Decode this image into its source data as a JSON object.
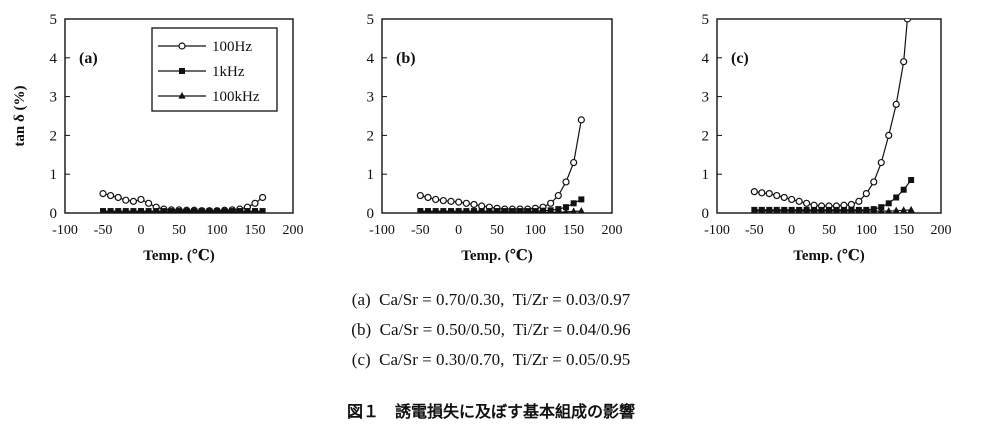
{
  "chart_data": [
    {
      "type": "line",
      "panel_label": "(a)",
      "xlabel": "Temp. (℃)",
      "ylabel": "tan δ (%)",
      "xlim": [
        -100,
        200
      ],
      "ylim": [
        0,
        5
      ],
      "xticks": [
        -100,
        -50,
        0,
        50,
        100,
        150,
        200
      ],
      "yticks": [
        0,
        1,
        2,
        3,
        4,
        5
      ],
      "legend": "top-left",
      "series": [
        {
          "name": "100Hz",
          "marker": "circle",
          "x": [
            -50,
            -40,
            -30,
            -20,
            -10,
            0,
            10,
            20,
            30,
            40,
            50,
            60,
            70,
            80,
            90,
            100,
            110,
            120,
            130,
            140,
            150,
            160
          ],
          "y": [
            0.5,
            0.45,
            0.4,
            0.33,
            0.3,
            0.35,
            0.25,
            0.15,
            0.1,
            0.08,
            0.08,
            0.07,
            0.07,
            0.06,
            0.06,
            0.06,
            0.07,
            0.08,
            0.1,
            0.15,
            0.25,
            0.4
          ]
        },
        {
          "name": "1kHz",
          "marker": "square",
          "x": [
            -50,
            -40,
            -30,
            -20,
            -10,
            0,
            10,
            20,
            30,
            40,
            50,
            60,
            70,
            80,
            90,
            100,
            110,
            120,
            130,
            140,
            150,
            160
          ],
          "y": [
            0.05,
            0.05,
            0.05,
            0.05,
            0.05,
            0.05,
            0.05,
            0.05,
            0.05,
            0.05,
            0.05,
            0.05,
            0.05,
            0.05,
            0.05,
            0.05,
            0.05,
            0.05,
            0.05,
            0.05,
            0.05,
            0.05
          ]
        },
        {
          "name": "100kHz",
          "marker": "triangle",
          "x": [
            -50,
            -40,
            -30,
            -20,
            -10,
            0,
            10,
            20,
            30,
            40,
            50,
            60,
            70,
            80,
            90,
            100,
            110,
            120,
            130,
            140,
            150,
            160
          ],
          "y": [
            0.02,
            0.02,
            0.02,
            0.02,
            0.02,
            0.02,
            0.02,
            0.02,
            0.02,
            0.02,
            0.02,
            0.02,
            0.02,
            0.02,
            0.02,
            0.02,
            0.02,
            0.02,
            0.02,
            0.02,
            0.02,
            0.02
          ]
        }
      ]
    },
    {
      "type": "line",
      "panel_label": "(b)",
      "xlabel": "Temp. (℃)",
      "ylabel": "",
      "xlim": [
        -100,
        200
      ],
      "ylim": [
        0,
        5
      ],
      "xticks": [
        -100,
        -50,
        0,
        50,
        100,
        150,
        200
      ],
      "yticks": [
        0,
        1,
        2,
        3,
        4,
        5
      ],
      "series": [
        {
          "name": "100Hz",
          "marker": "circle",
          "x": [
            -50,
            -40,
            -30,
            -20,
            -10,
            0,
            10,
            20,
            30,
            40,
            50,
            60,
            70,
            80,
            90,
            100,
            110,
            120,
            130,
            140,
            150,
            160
          ],
          "y": [
            0.45,
            0.4,
            0.35,
            0.32,
            0.3,
            0.28,
            0.25,
            0.22,
            0.18,
            0.15,
            0.12,
            0.1,
            0.1,
            0.1,
            0.1,
            0.12,
            0.15,
            0.25,
            0.45,
            0.8,
            1.3,
            2.4
          ]
        },
        {
          "name": "1kHz",
          "marker": "square",
          "x": [
            -50,
            -40,
            -30,
            -20,
            -10,
            0,
            10,
            20,
            30,
            40,
            50,
            60,
            70,
            80,
            90,
            100,
            110,
            120,
            130,
            140,
            150,
            160
          ],
          "y": [
            0.05,
            0.05,
            0.05,
            0.05,
            0.05,
            0.05,
            0.05,
            0.05,
            0.05,
            0.05,
            0.05,
            0.05,
            0.05,
            0.05,
            0.05,
            0.05,
            0.06,
            0.07,
            0.1,
            0.15,
            0.25,
            0.35
          ]
        },
        {
          "name": "100kHz",
          "marker": "triangle",
          "x": [
            -50,
            -40,
            -30,
            -20,
            -10,
            0,
            10,
            20,
            30,
            40,
            50,
            60,
            70,
            80,
            90,
            100,
            110,
            120,
            130,
            140,
            150,
            160
          ],
          "y": [
            0.02,
            0.02,
            0.02,
            0.02,
            0.02,
            0.02,
            0.02,
            0.02,
            0.02,
            0.02,
            0.02,
            0.02,
            0.02,
            0.02,
            0.02,
            0.02,
            0.02,
            0.02,
            0.02,
            0.03,
            0.04,
            0.05
          ]
        }
      ]
    },
    {
      "type": "line",
      "panel_label": "(c)",
      "xlabel": "Temp. (℃)",
      "ylabel": "",
      "xlim": [
        -100,
        200
      ],
      "ylim": [
        0,
        5
      ],
      "xticks": [
        -100,
        -50,
        0,
        50,
        100,
        150,
        200
      ],
      "yticks": [
        0,
        1,
        2,
        3,
        4,
        5
      ],
      "series": [
        {
          "name": "100Hz",
          "marker": "circle",
          "x": [
            -50,
            -40,
            -30,
            -20,
            -10,
            0,
            10,
            20,
            30,
            40,
            50,
            60,
            70,
            80,
            90,
            100,
            110,
            120,
            130,
            140,
            150,
            155
          ],
          "y": [
            0.55,
            0.52,
            0.5,
            0.45,
            0.4,
            0.35,
            0.3,
            0.25,
            0.2,
            0.18,
            0.18,
            0.18,
            0.2,
            0.22,
            0.3,
            0.5,
            0.8,
            1.3,
            2.0,
            2.8,
            3.9,
            5.0
          ]
        },
        {
          "name": "1kHz",
          "marker": "square",
          "x": [
            -50,
            -40,
            -30,
            -20,
            -10,
            0,
            10,
            20,
            30,
            40,
            50,
            60,
            70,
            80,
            90,
            100,
            110,
            120,
            130,
            140,
            150,
            160
          ],
          "y": [
            0.08,
            0.08,
            0.08,
            0.08,
            0.08,
            0.08,
            0.08,
            0.08,
            0.08,
            0.08,
            0.08,
            0.08,
            0.08,
            0.08,
            0.08,
            0.08,
            0.1,
            0.15,
            0.25,
            0.4,
            0.6,
            0.85
          ]
        },
        {
          "name": "100kHz",
          "marker": "triangle",
          "x": [
            -50,
            -40,
            -30,
            -20,
            -10,
            0,
            10,
            20,
            30,
            40,
            50,
            60,
            70,
            80,
            90,
            100,
            110,
            120,
            130,
            140,
            150,
            160
          ],
          "y": [
            0.05,
            0.05,
            0.05,
            0.05,
            0.05,
            0.05,
            0.05,
            0.05,
            0.05,
            0.05,
            0.05,
            0.05,
            0.05,
            0.05,
            0.05,
            0.05,
            0.05,
            0.05,
            0.05,
            0.06,
            0.07,
            0.08
          ]
        }
      ]
    }
  ],
  "captions": {
    "a": "(a)  Ca/Sr = 0.70/0.30,  Ti/Zr = 0.03/0.97",
    "b": "(b)  Ca/Sr = 0.50/0.50,  Ti/Zr = 0.04/0.96",
    "c": "(c)  Ca/Sr = 0.30/0.70,  Ti/Zr = 0.05/0.95"
  },
  "figure_title": "図１　誘電損失に及ぼす基本組成の影響"
}
